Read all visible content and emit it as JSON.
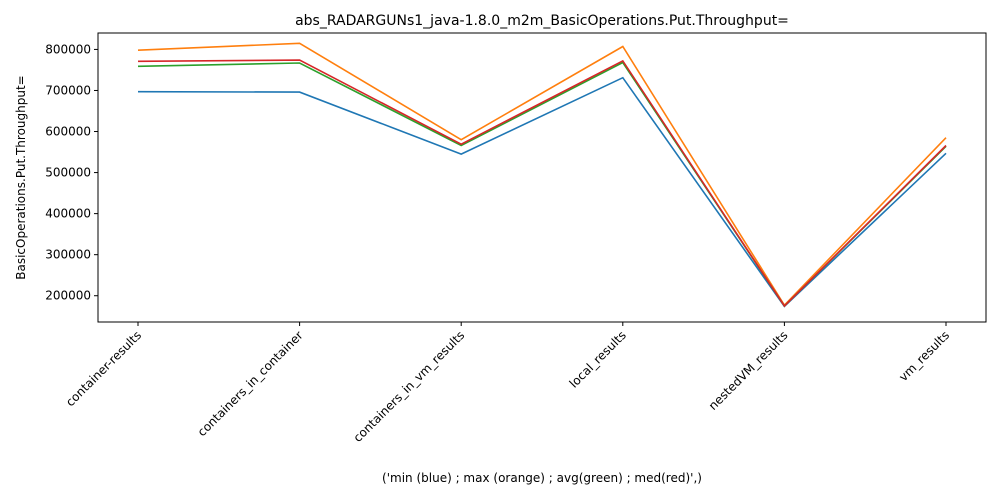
{
  "chart_data": {
    "type": "line",
    "title": "abs_RADARGUNs1_java-1.8.0_m2m_BasicOperations.Put.Throughput=",
    "xlabel": "('min (blue) ; max (orange) ; avg(green) ; med(red)',)",
    "ylabel": "BasicOperations.Put.Throughput=",
    "categories": [
      "container-results",
      "containers_in_container",
      "containers_in_vm_results",
      "local_results",
      "nestedVM_results",
      "vm_results"
    ],
    "y_ticks": [
      200000,
      300000,
      400000,
      500000,
      600000,
      700000,
      800000
    ],
    "ylim": [
      136000,
      840000
    ],
    "grid": false,
    "series": [
      {
        "color": "#1f77b4",
        "values": [
          697000,
          696000,
          545000,
          731000,
          174000,
          547000
        ]
      },
      {
        "color": "#ff7f0e",
        "values": [
          798000,
          815000,
          580000,
          807000,
          177000,
          585000
        ]
      },
      {
        "color": "#2ca02c",
        "values": [
          759000,
          767000,
          566000,
          768000,
          175000,
          564000
        ]
      },
      {
        "color": "#d62728",
        "values": [
          771000,
          774000,
          569000,
          772000,
          175000,
          566000
        ]
      }
    ]
  }
}
